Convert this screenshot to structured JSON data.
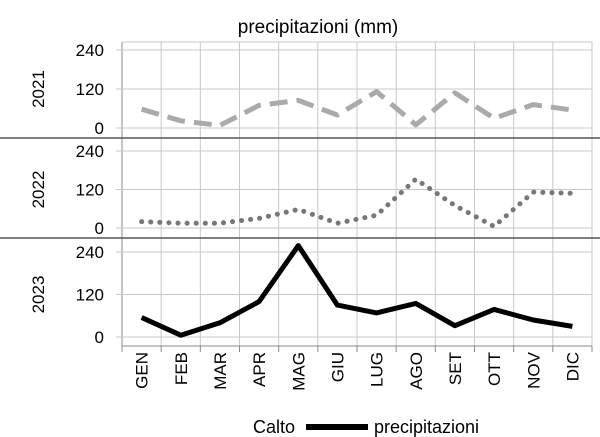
{
  "chart_data": {
    "type": "line",
    "title": "precipitazioni (mm)",
    "categories": [
      "GEN",
      "FEB",
      "MAR",
      "APR",
      "MAG",
      "GIU",
      "LUG",
      "AGO",
      "SET",
      "OTT",
      "NOV",
      "DIC"
    ],
    "panels": [
      {
        "ylabel": "2021",
        "ylim": [
          0,
          240
        ],
        "yticks": [
          "240",
          "120",
          "0"
        ],
        "line_style": "dashed",
        "color": "#aaaaaa",
        "values": [
          58,
          22,
          8,
          70,
          85,
          40,
          112,
          10,
          108,
          30,
          72,
          55
        ]
      },
      {
        "ylabel": "2022",
        "ylim": [
          0,
          240
        ],
        "yticks": [
          "240",
          "120",
          "0"
        ],
        "line_style": "dotted",
        "color": "#777777",
        "values": [
          20,
          15,
          15,
          30,
          58,
          15,
          40,
          152,
          70,
          5,
          112,
          108
        ]
      },
      {
        "ylabel": "2023",
        "ylim": [
          0,
          240
        ],
        "yticks": [
          "240",
          "120",
          "0"
        ],
        "line_style": "solid",
        "color": "#000000",
        "values": [
          55,
          5,
          40,
          100,
          258,
          90,
          68,
          95,
          32,
          78,
          48,
          30
        ]
      }
    ],
    "legend": {
      "placement": "bottom",
      "prefix": "Calto",
      "label": "precipitazioni"
    },
    "grid": true
  }
}
